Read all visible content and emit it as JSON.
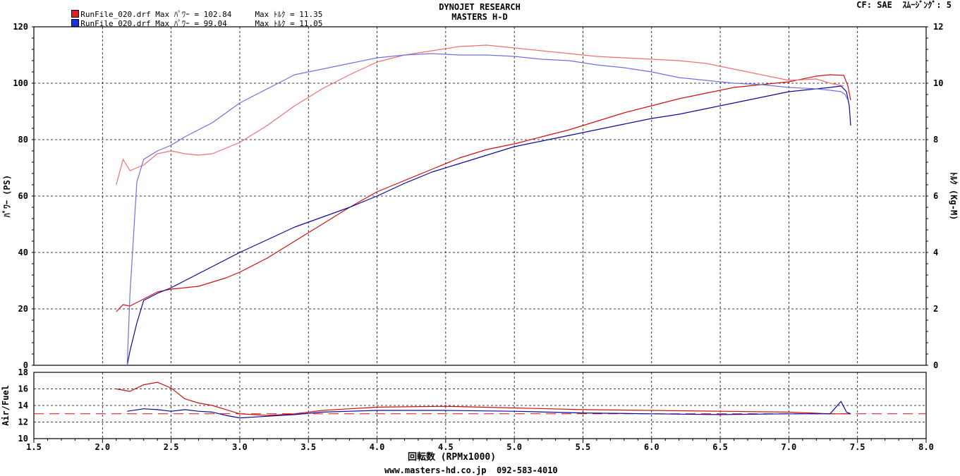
{
  "legend": [
    {
      "file": "RunFile_020.drf",
      "max_power": "Max ﾊﾟﾜｰ = 102.84",
      "max_torque": "Max ﾄﾙｸ = 11.35",
      "color": "#e02020"
    },
    {
      "file": "RunFile_020.drf",
      "max_power": "Max ﾊﾟﾜｰ = 99.04",
      "max_torque": "Max ﾄﾙｸ = 11.05",
      "color": "#2030e0"
    }
  ],
  "header": {
    "line1": "DYNOJET  RESEARCH",
    "line2": "MASTERS  H-D"
  },
  "cf_info": "CF: SAE  ｽﾑｰｼﾞﾝｸﾞ: 5",
  "footer": "www.masters-hd.co.jp  092-583-4010",
  "chart_data": [
    {
      "type": "line",
      "name": "main",
      "xlabel": "回転数 (RPMx1000)",
      "ylabel": "ﾊﾟﾜｰ (PS)",
      "y2label": "ﾄﾙｸ (Kg-M)",
      "xlim": [
        1.5,
        8.0
      ],
      "ylim": [
        0,
        120
      ],
      "y2lim": [
        0,
        12
      ],
      "x_ticks": [
        "1.5",
        "2.0",
        "2.5",
        "3.0",
        "3.5",
        "4.0",
        "4.5",
        "5.0",
        "5.5",
        "6.0",
        "6.5",
        "7.0",
        "7.5",
        "8.0"
      ],
      "y_ticks": [
        "0",
        "20",
        "40",
        "60",
        "80",
        "100",
        "120"
      ],
      "y2_ticks": [
        "0",
        "2",
        "4",
        "6",
        "8",
        "10",
        "12"
      ],
      "grid": true,
      "series": [
        {
          "name": "power_red",
          "axis": "left",
          "color": "#d01010",
          "x": [
            2.1,
            2.15,
            2.2,
            2.3,
            2.4,
            2.5,
            2.6,
            2.7,
            2.8,
            2.9,
            3.0,
            3.2,
            3.4,
            3.6,
            3.8,
            4.0,
            4.2,
            4.4,
            4.6,
            4.8,
            5.0,
            5.2,
            5.4,
            5.6,
            5.8,
            6.0,
            6.2,
            6.4,
            6.6,
            6.8,
            7.0,
            7.1,
            7.2,
            7.3,
            7.4,
            7.43,
            7.45
          ],
          "y": [
            19,
            21.5,
            21,
            23.5,
            26,
            27,
            27.5,
            28,
            29.5,
            31,
            33,
            38,
            44,
            50,
            56,
            61.5,
            65.5,
            69.5,
            73.5,
            76.5,
            78.5,
            81,
            83.5,
            86.5,
            89.5,
            92,
            94.5,
            96.5,
            98.5,
            99.5,
            100.5,
            101.5,
            102.5,
            103,
            102.8,
            99,
            94
          ]
        },
        {
          "name": "power_blue",
          "axis": "left",
          "color": "#0a0aa0",
          "x": [
            2.18,
            2.2,
            2.25,
            2.3,
            2.4,
            2.5,
            2.6,
            2.8,
            3.0,
            3.2,
            3.4,
            3.6,
            3.8,
            4.0,
            4.2,
            4.4,
            4.6,
            4.8,
            5.0,
            5.2,
            5.4,
            5.6,
            5.8,
            6.0,
            6.2,
            6.4,
            6.6,
            6.8,
            7.0,
            7.2,
            7.3,
            7.38,
            7.42,
            7.44,
            7.45
          ],
          "y": [
            0,
            5,
            15,
            23,
            25.5,
            27.5,
            30,
            35,
            40,
            44.5,
            49,
            52.5,
            56,
            60,
            64.5,
            68.5,
            71.5,
            74.5,
            77.5,
            79.5,
            81.5,
            83.5,
            85.5,
            87.5,
            89,
            91,
            93,
            95,
            97,
            98,
            98.5,
            99,
            97,
            92,
            85
          ]
        },
        {
          "name": "torque_red",
          "axis": "right",
          "color": "#f07070",
          "x": [
            2.1,
            2.15,
            2.2,
            2.3,
            2.4,
            2.5,
            2.6,
            2.7,
            2.8,
            3.0,
            3.2,
            3.4,
            3.6,
            3.8,
            4.0,
            4.2,
            4.4,
            4.6,
            4.8,
            5.0,
            5.2,
            5.4,
            5.6,
            5.8,
            6.0,
            6.2,
            6.4,
            6.6,
            6.8,
            7.0,
            7.2,
            7.3,
            7.4
          ],
          "y": [
            6.4,
            7.3,
            6.9,
            7.1,
            7.5,
            7.6,
            7.5,
            7.45,
            7.5,
            7.9,
            8.5,
            9.2,
            9.8,
            10.3,
            10.75,
            11.0,
            11.15,
            11.3,
            11.35,
            11.25,
            11.15,
            11.05,
            10.95,
            10.9,
            10.85,
            10.8,
            10.7,
            10.5,
            10.3,
            10.1,
            10.15,
            10.0,
            9.9
          ]
        },
        {
          "name": "torque_blue",
          "axis": "right",
          "color": "#7070e0",
          "x": [
            2.18,
            2.2,
            2.25,
            2.3,
            2.4,
            2.5,
            2.6,
            2.8,
            3.0,
            3.2,
            3.4,
            3.6,
            3.8,
            4.0,
            4.2,
            4.4,
            4.6,
            4.8,
            5.0,
            5.2,
            5.4,
            5.6,
            5.8,
            6.0,
            6.2,
            6.4,
            6.6,
            6.8,
            7.0,
            7.2,
            7.3,
            7.38,
            7.41,
            7.43
          ],
          "y": [
            0,
            2.5,
            6.5,
            7.3,
            7.6,
            7.8,
            8.1,
            8.6,
            9.3,
            9.8,
            10.3,
            10.5,
            10.7,
            10.9,
            11.0,
            11.05,
            11.0,
            11.0,
            10.95,
            10.85,
            10.8,
            10.65,
            10.55,
            10.4,
            10.2,
            10.1,
            10.0,
            9.95,
            9.85,
            9.8,
            9.75,
            9.7,
            9.6,
            9.4
          ]
        }
      ]
    },
    {
      "type": "line",
      "name": "air_fuel",
      "ylabel": "Air/Fuel",
      "xlim": [
        1.5,
        8.0
      ],
      "ylim": [
        10,
        18
      ],
      "y_ticks": [
        "10",
        "12",
        "14",
        "16",
        "18"
      ],
      "reference_line": 13,
      "grid": true,
      "series": [
        {
          "name": "af_red",
          "color": "#d01010",
          "x": [
            2.1,
            2.2,
            2.3,
            2.4,
            2.5,
            2.6,
            2.7,
            2.8,
            2.9,
            3.0,
            3.2,
            3.4,
            3.6,
            3.8,
            4.0,
            4.5,
            5.0,
            5.5,
            6.0,
            6.5,
            7.0,
            7.3,
            7.45
          ],
          "y": [
            16,
            15.7,
            16.5,
            16.8,
            16.1,
            14.8,
            14.3,
            14,
            13.5,
            13,
            12.8,
            13,
            13.4,
            13.6,
            13.8,
            13.9,
            13.7,
            13.5,
            13.4,
            13.3,
            13.2,
            13.0,
            13.0
          ]
        },
        {
          "name": "af_blue",
          "color": "#0a0aa0",
          "x": [
            2.18,
            2.3,
            2.4,
            2.5,
            2.6,
            2.7,
            2.8,
            2.9,
            3.0,
            3.2,
            3.4,
            3.6,
            3.8,
            4.0,
            4.5,
            5.0,
            5.5,
            6.0,
            6.5,
            7.0,
            7.3,
            7.38,
            7.42,
            7.45
          ],
          "y": [
            13.3,
            13.6,
            13.5,
            13.3,
            13.5,
            13.3,
            13.2,
            12.8,
            12.5,
            12.7,
            12.9,
            13.2,
            13.3,
            13.4,
            13.4,
            13.3,
            13.1,
            13.0,
            12.9,
            13.0,
            13.0,
            14.5,
            13.2,
            13.0
          ]
        }
      ]
    }
  ]
}
